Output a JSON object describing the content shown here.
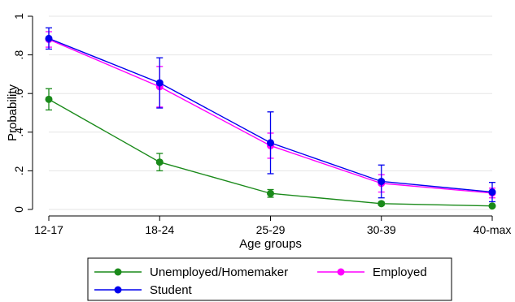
{
  "chart_data": {
    "type": "line",
    "xlabel": "Age groups",
    "ylabel": "Probability",
    "categories": [
      "12-17",
      "18-24",
      "25-29",
      "30-39",
      "40-max"
    ],
    "ylim": [
      0,
      1
    ],
    "yticks": [
      0,
      0.2,
      0.4,
      0.6,
      0.8,
      1
    ],
    "ytick_labels": [
      "0",
      ".2",
      ".4",
      ".6",
      ".8",
      "1"
    ],
    "grid": true,
    "legend_position": "bottom",
    "series": [
      {
        "name": "Unemployed/Homemaker",
        "color": "#1a8a1a",
        "values": [
          0.57,
          0.245,
          0.083,
          0.03,
          0.018
        ],
        "ci_low": [
          0.515,
          0.2,
          0.063,
          0.022,
          0.012
        ],
        "ci_high": [
          0.625,
          0.29,
          0.103,
          0.038,
          0.024
        ]
      },
      {
        "name": "Employed",
        "color": "#ff00ff",
        "values": [
          0.88,
          0.635,
          0.33,
          0.135,
          0.085
        ],
        "ci_low": [
          0.84,
          0.53,
          0.265,
          0.09,
          0.06
        ],
        "ci_high": [
          0.92,
          0.74,
          0.395,
          0.18,
          0.11
        ]
      },
      {
        "name": "Student",
        "color": "#0000ee",
        "values": [
          0.885,
          0.655,
          0.345,
          0.145,
          0.09
        ],
        "ci_low": [
          0.83,
          0.525,
          0.185,
          0.06,
          0.04
        ],
        "ci_high": [
          0.94,
          0.785,
          0.505,
          0.23,
          0.14
        ]
      }
    ],
    "legend_order": [
      "Unemployed/Homemaker",
      "Employed",
      "Student"
    ]
  }
}
